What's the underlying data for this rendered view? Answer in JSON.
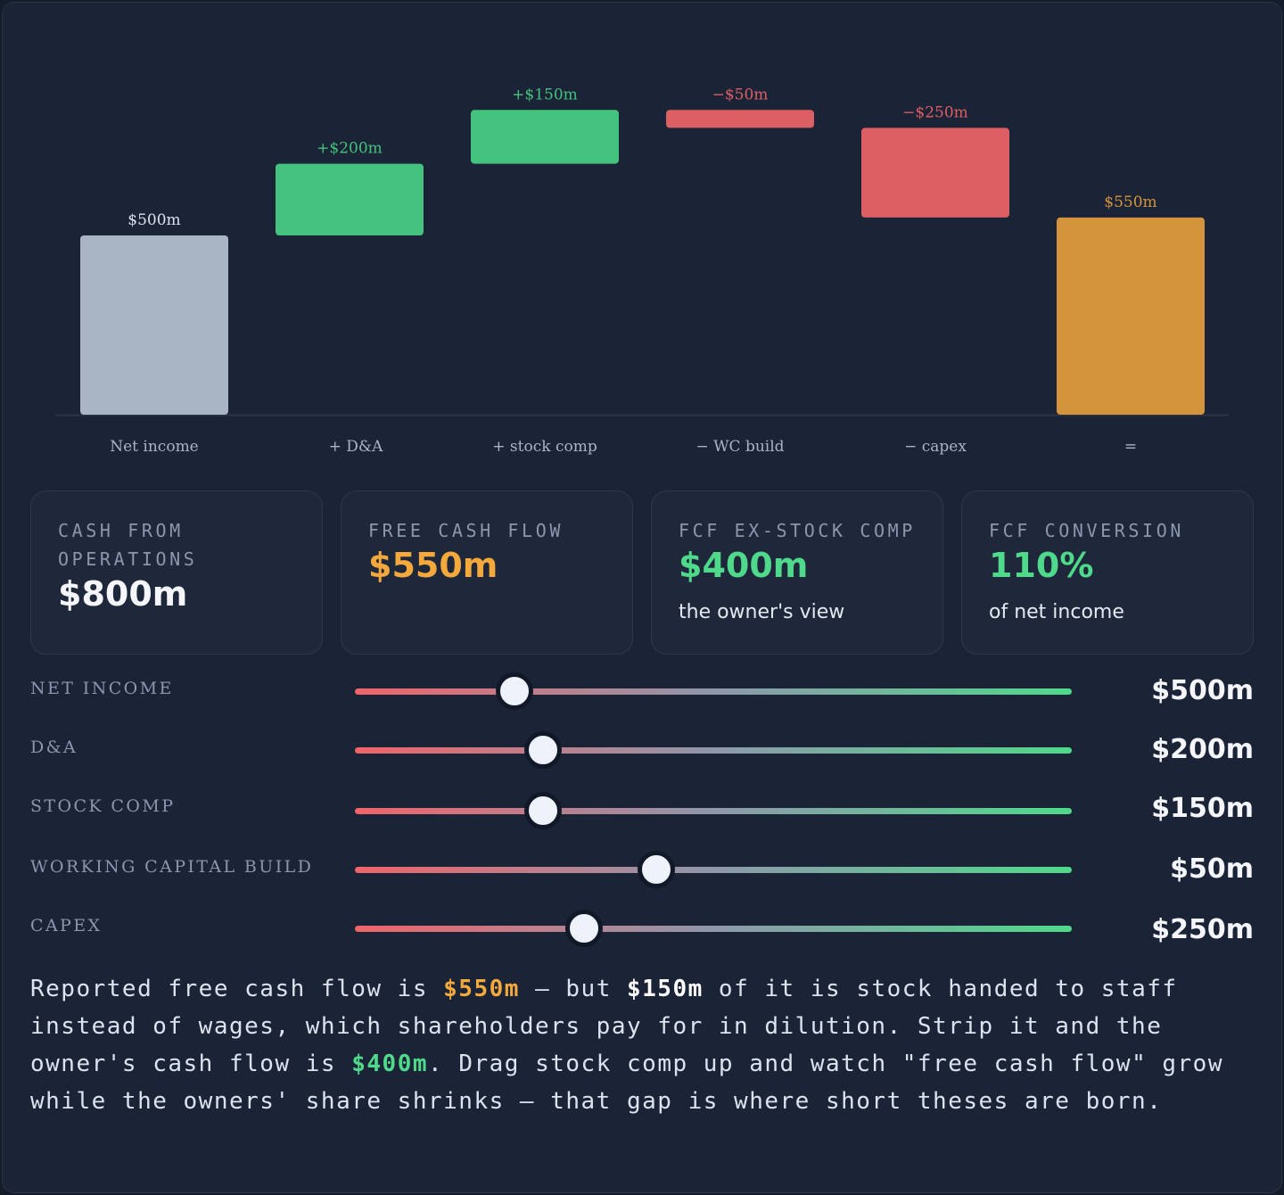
{
  "chart_data": {
    "type": "bar",
    "subtype": "waterfall",
    "categories": [
      "Net income",
      "+ D&A",
      "+ stock comp",
      "− WC build",
      "− capex",
      "="
    ],
    "values": [
      500,
      200,
      150,
      -50,
      -250,
      550
    ],
    "kinds": [
      "total",
      "increase",
      "increase",
      "decrease",
      "decrease",
      "total"
    ],
    "data_labels": [
      "$500m",
      "+$200m",
      "+$150m",
      "−$50m",
      "−$250m",
      "$550m"
    ],
    "ylim": [
      0,
      1000
    ],
    "grid": false,
    "colors": {
      "start": "#a9b4c4",
      "increase": "#43c37d",
      "decrease": "#dc5f63",
      "end": "#d4943c",
      "axis": "#2b3446",
      "tick_label": "#a9b4c4"
    }
  },
  "cards": [
    {
      "label": "Cash from operations",
      "value": "$800m",
      "sub": "",
      "color": "#f4f6fb"
    },
    {
      "label": "Free cash flow",
      "value": "$550m",
      "sub": "",
      "color": "#f5a93c"
    },
    {
      "label": "FCF ex-stock comp",
      "value": "$400m",
      "sub": "the owner's view",
      "color": "#4fd98a"
    },
    {
      "label": "FCF conversion",
      "value": "110%",
      "sub": "of net income",
      "color": "#4fd98a"
    }
  ],
  "sliders": [
    {
      "label": "Net income",
      "value": "$500m",
      "fraction": 0.223
    },
    {
      "label": "D&A",
      "value": "$200m",
      "fraction": 0.263
    },
    {
      "label": "Stock comp",
      "value": "$150m",
      "fraction": 0.263
    },
    {
      "label": "Working capital build",
      "value": "$50m",
      "fraction": 0.421
    },
    {
      "label": "Capex",
      "value": "$250m",
      "fraction": 0.32
    }
  ],
  "narrative": {
    "p1": "Reported free cash flow is ",
    "v1": "$550m",
    "p2": " — but ",
    "v2": "$150m",
    "p3": " of it is stock handed to staff instead of wages, which shareholders pay for in dilution. Strip it and the owner's cash flow is ",
    "v3": "$400m",
    "p4": ". Drag stock comp up and watch \"free cash flow\" grow while the owners' share shrinks — that gap is where short theses are born."
  }
}
